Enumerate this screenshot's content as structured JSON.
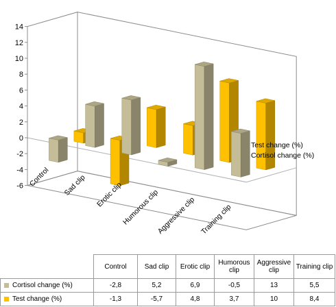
{
  "chart_data": {
    "type": "bar",
    "variant": "3d-clustered-column",
    "categories": [
      "Control",
      "Sad clip",
      "Erotic clip",
      "Humorous clip",
      "Aggressive clip",
      "Training clip"
    ],
    "series": [
      {
        "name": "Cortisol change (%)",
        "color": "#c4bd97",
        "values": [
          -2.8,
          5.2,
          6.9,
          -0.5,
          13,
          5.5
        ]
      },
      {
        "name": "Test change (%)",
        "color": "#ffc000",
        "values": [
          -1.3,
          -5.7,
          4.8,
          3.7,
          10,
          8.4
        ]
      }
    ],
    "yticks": [
      -6,
      -4,
      -2,
      0,
      2,
      4,
      6,
      8,
      10,
      12,
      14
    ],
    "ylim": [
      -6,
      14
    ],
    "grid": false,
    "legend": "right"
  },
  "table": {
    "headers": [
      "Control",
      "Sad clip",
      "Erotic clip",
      "Humorous clip",
      "Aggressive clip",
      "Training clip"
    ],
    "rows": [
      {
        "label": "Cortisol change (%)",
        "color": "#c4bd97",
        "values": [
          "-2,8",
          "5,2",
          "6,9",
          "-0,5",
          "13",
          "5,5"
        ]
      },
      {
        "label": "Test change (%)",
        "color": "#ffc000",
        "values": [
          "-1,3",
          "-5,7",
          "4,8",
          "3,7",
          "10",
          "8,4"
        ]
      }
    ]
  }
}
